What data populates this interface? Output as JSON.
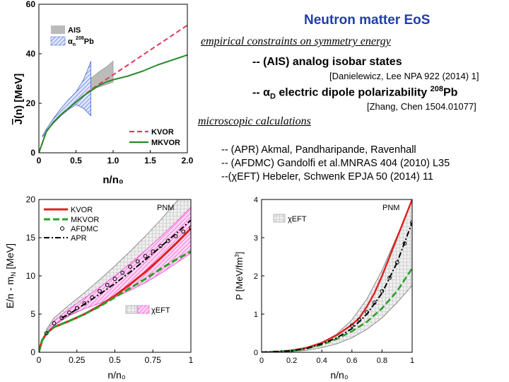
{
  "slide": {
    "title": "Neutron matter EoS",
    "section1": "empirical constraints on symmetry energy",
    "ais_line": "-- (AIS) analog isobar states",
    "ais_ref": "[Danielewicz, Lee NPA 922 (2014) 1]",
    "alpha_line_prefix": "-- ",
    "alpha_symbol": "α",
    "alpha_sub": "D",
    "alpha_line_mid": " electric dipole polarizability ",
    "alpha_sup": "208",
    "alpha_line_end": "Pb",
    "alpha_ref": "[Zhang, Chen 1504.01077]",
    "section2": "microscopic calculations",
    "calc_lines": [
      "-- (APR)    Akmal, Pandharipande, Ravenhall",
      "-- (AFDMC) Gandolfi  et al.MNRAS 404 (2010) L35",
      "--(χEFT)     Hebeler, Schwenk EPJA 50 (2014) 11"
    ]
  },
  "colors": {
    "title": "#1f3fa8",
    "kvor": "#e23b5a",
    "mkvor": "#2a8a2a",
    "red": "#e02020",
    "green": "#2aa02a",
    "magenta": "#ee44cc",
    "blue_hatch": "#4466cc",
    "gray_band": "#bbbbbb"
  },
  "chart_data": [
    {
      "type": "line",
      "xlabel": "n/n₀",
      "ylabel_parts": [
        "J",
        "(n) [MeV]"
      ],
      "xlim": [
        0,
        2.0
      ],
      "ylim": [
        0,
        60
      ],
      "xticks": [
        "0",
        "0.5",
        "1.0",
        "1.5",
        "2.0"
      ],
      "yticks": [
        "0",
        "20",
        "40",
        "60"
      ],
      "bands": [
        {
          "name": "AIS",
          "sup": "",
          "x": [
            0.55,
            0.6,
            0.7,
            0.8,
            0.9,
            1.0
          ],
          "upper": [
            26,
            28,
            30,
            32.5,
            34.5,
            37
          ],
          "lower": [
            24,
            24.5,
            25.5,
            26.5,
            27.5,
            28.5
          ]
        },
        {
          "name": "α",
          "sub": "n",
          "sup": "208",
          "suffix": "Pb",
          "x": [
            0.05,
            0.1,
            0.2,
            0.3,
            0.4,
            0.5,
            0.6,
            0.65,
            0.7
          ],
          "upper": [
            7,
            9.5,
            14,
            18,
            21.5,
            24.5,
            29.5,
            33,
            37
          ],
          "lower": [
            6.5,
            8.5,
            12,
            15,
            17.5,
            19.5,
            18,
            16.5,
            15
          ]
        }
      ],
      "series": [
        {
          "name": "KVOR",
          "style": "dashed",
          "x": [
            0,
            0.1,
            0.2,
            0.3,
            0.4,
            0.5,
            0.6,
            0.7,
            0.8,
            0.9,
            1.0,
            1.2,
            1.4,
            1.6,
            1.8,
            2.0
          ],
          "y": [
            0,
            8.5,
            12.5,
            15.5,
            18,
            20.5,
            23,
            25.5,
            27.5,
            29.5,
            31.5,
            35.5,
            39.5,
            43.5,
            47.5,
            51.5
          ]
        },
        {
          "name": "MKVOR",
          "style": "solid",
          "x": [
            0,
            0.1,
            0.2,
            0.3,
            0.4,
            0.5,
            0.6,
            0.7,
            0.8,
            0.9,
            1.0,
            1.2,
            1.4,
            1.6,
            1.8,
            2.0
          ],
          "y": [
            0,
            8.5,
            12.5,
            15.5,
            18,
            20.5,
            23,
            25,
            27,
            28.5,
            29.5,
            31,
            33,
            35.5,
            37.5,
            39.5
          ]
        }
      ]
    },
    {
      "type": "line",
      "xlabel": "n/n₀",
      "ylabel": "E/n - m",
      "ylabel_sub": "N",
      "ylabel_end": " [MeV]",
      "xlim": [
        0,
        1
      ],
      "ylim": [
        0,
        20
      ],
      "xticks": [
        "0",
        "0.25",
        "0.5",
        "0.75",
        "1"
      ],
      "yticks": [
        "0",
        "5",
        "10",
        "15",
        "20"
      ],
      "corner_label": "PNM",
      "band_label": "χEFT",
      "bands": [
        {
          "name": "gray",
          "x": [
            0.05,
            0.1,
            0.2,
            0.3,
            0.4,
            0.5,
            0.6,
            0.7,
            0.8,
            0.9,
            1.0
          ],
          "upper": [
            3,
            4.5,
            6.2,
            7.8,
            9.5,
            11.3,
            13.2,
            15.2,
            17.3,
            19.6,
            21.8
          ],
          "lower": [
            2.5,
            3.5,
            4.8,
            5.7,
            6.5,
            7.4,
            8.4,
            9.5,
            10.8,
            12.2,
            13.8
          ]
        },
        {
          "name": "magenta",
          "x": [
            0.05,
            0.1,
            0.2,
            0.3,
            0.4,
            0.5,
            0.6,
            0.7,
            0.8,
            0.9,
            1.0
          ],
          "upper": [
            2.8,
            4.1,
            5.7,
            7.1,
            8.5,
            10,
            11.6,
            13.3,
            15.1,
            17,
            19
          ],
          "lower": [
            2.6,
            3.6,
            4.9,
            5.7,
            6.4,
            7.2,
            8.1,
            9.1,
            10.3,
            11.6,
            13
          ]
        }
      ],
      "series": [
        {
          "name": "KVOR",
          "style": "solid",
          "x": [
            0,
            0.02,
            0.05,
            0.1,
            0.15,
            0.2,
            0.3,
            0.4,
            0.5,
            0.6,
            0.7,
            0.8,
            0.9,
            1.0
          ],
          "y": [
            0,
            1.5,
            2.5,
            3.3,
            3.7,
            4.1,
            5,
            6.1,
            7.4,
            8.9,
            10.5,
            12.3,
            14.2,
            16.2
          ]
        },
        {
          "name": "MKVOR",
          "style": "dashed",
          "x": [
            0,
            0.02,
            0.05,
            0.1,
            0.15,
            0.2,
            0.3,
            0.4,
            0.5,
            0.6,
            0.7,
            0.8,
            0.9,
            1.0
          ],
          "y": [
            0,
            1.5,
            2.5,
            3.3,
            3.7,
            4.1,
            5,
            6,
            7.2,
            8.4,
            9.6,
            10.9,
            12.1,
            13.2
          ]
        },
        {
          "name": "AFDMC",
          "style": "markers",
          "x": [
            0.05,
            0.1,
            0.15,
            0.2,
            0.25,
            0.3,
            0.35,
            0.4,
            0.45,
            0.5,
            0.55,
            0.6,
            0.65,
            0.7,
            0.75,
            0.8,
            0.85,
            0.9,
            0.95,
            1.0
          ],
          "y": [
            2.5,
            3.8,
            4.5,
            5.2,
            5.8,
            6.4,
            7.2,
            8,
            8.8,
            9.6,
            10.4,
            11.2,
            11.9,
            12.6,
            13.2,
            13.9,
            14.6,
            15.2,
            15.8,
            16.3
          ]
        },
        {
          "name": "APR",
          "style": "dashdot",
          "x": [
            0.15,
            0.2,
            0.3,
            0.4,
            0.5,
            0.6,
            0.7,
            0.8,
            0.9,
            1.0
          ],
          "y": [
            4.5,
            5,
            6.3,
            7.6,
            9,
            10.5,
            12.1,
            13.8,
            15.5,
            17.3
          ]
        }
      ]
    },
    {
      "type": "line",
      "xlabel": "n/n₀",
      "ylabel": "P [MeV/fm",
      "ylabel_sup": "3",
      "ylabel_end": "]",
      "xlim": [
        0,
        1
      ],
      "ylim": [
        0,
        4
      ],
      "xticks": [
        "0",
        "0.2",
        "0.4",
        "0.6",
        "0.8",
        "1"
      ],
      "yticks": [
        "0",
        "1",
        "2",
        "3",
        "4"
      ],
      "corner_label": "PNM",
      "band_label": "χEFT",
      "bands": [
        {
          "name": "gray",
          "x": [
            0,
            0.1,
            0.2,
            0.3,
            0.4,
            0.5,
            0.6,
            0.7,
            0.8,
            0.9,
            1.0
          ],
          "upper": [
            0,
            0.01,
            0.04,
            0.1,
            0.25,
            0.48,
            0.85,
            1.4,
            2.15,
            3.05,
            3.95
          ],
          "lower": [
            0,
            0.005,
            0.02,
            0.05,
            0.12,
            0.22,
            0.38,
            0.6,
            0.9,
            1.3,
            1.75
          ]
        }
      ],
      "series": [
        {
          "name": "KVOR",
          "style": "solid",
          "x": [
            0,
            0.1,
            0.2,
            0.3,
            0.4,
            0.5,
            0.6,
            0.65,
            0.7,
            0.75,
            0.8,
            0.85,
            0.9,
            0.95,
            1.0
          ],
          "y": [
            0,
            0.01,
            0.05,
            0.12,
            0.25,
            0.45,
            0.72,
            0.9,
            1.2,
            1.55,
            2.0,
            2.5,
            3.0,
            3.5,
            4.0
          ]
        },
        {
          "name": "MKVOR",
          "style": "dashed",
          "x": [
            0,
            0.2,
            0.3,
            0.4,
            0.5,
            0.6,
            0.7,
            0.8,
            0.9,
            1.0
          ],
          "y": [
            0,
            0.04,
            0.1,
            0.2,
            0.35,
            0.55,
            0.8,
            1.15,
            1.6,
            2.2
          ]
        },
        {
          "name": "APR",
          "style": "dashdot",
          "x": [
            0,
            0.2,
            0.3,
            0.4,
            0.5,
            0.6,
            0.7,
            0.8,
            0.9,
            1.0
          ],
          "y": [
            0,
            0.04,
            0.1,
            0.22,
            0.38,
            0.62,
            1.0,
            1.55,
            2.35,
            3.4
          ]
        },
        {
          "name": "AFDMC",
          "style": "markers",
          "x": [
            0.6,
            0.65,
            0.7,
            0.75,
            0.8,
            0.85,
            0.9,
            0.95,
            1.0
          ],
          "y": [
            0.7,
            0.85,
            1.05,
            1.3,
            1.6,
            1.95,
            2.35,
            2.85,
            3.4
          ]
        }
      ]
    }
  ]
}
